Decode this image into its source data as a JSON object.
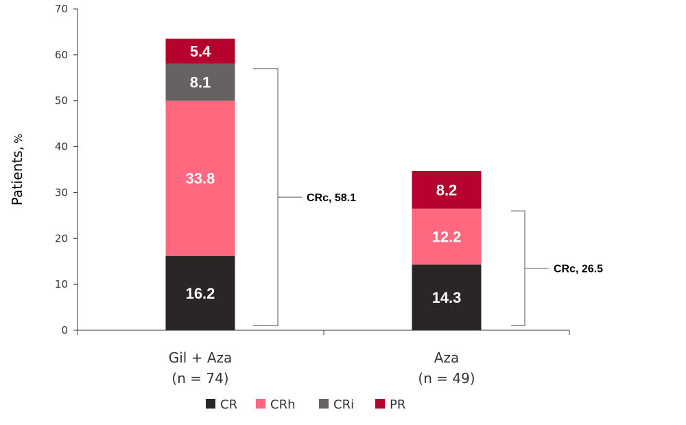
{
  "chart_data": {
    "type": "bar",
    "stacked": true,
    "title": "",
    "xlabel": "",
    "ylabel": "Patients,",
    "ylabel_unit": "%",
    "ylim": [
      0,
      70
    ],
    "yticks": [
      0,
      10,
      20,
      30,
      40,
      50,
      60,
      70
    ],
    "grid": false,
    "legend_position": "bottom",
    "categories": [
      {
        "line1": "Gil + Aza",
        "line2": "(n = 74)"
      },
      {
        "line1": "Aza",
        "line2": "(n = 49)"
      }
    ],
    "series": [
      {
        "name": "CR",
        "color": "#2b2626",
        "values": [
          16.2,
          14.3
        ],
        "labels": [
          "16.2",
          "14.3"
        ]
      },
      {
        "name": "CRh",
        "color": "#ff687e",
        "values": [
          33.8,
          12.2
        ],
        "labels": [
          "33.8",
          "12.2"
        ]
      },
      {
        "name": "CRi",
        "color": "#666262",
        "values": [
          8.1,
          0
        ],
        "labels": [
          "8.1",
          ""
        ]
      },
      {
        "name": "PR",
        "color": "#b5032d",
        "values": [
          5.4,
          8.2
        ],
        "labels": [
          "5.4",
          "8.2"
        ]
      }
    ],
    "annotations": [
      {
        "category_index": 0,
        "text": "CRc, 58.1",
        "from": 1,
        "to": 57
      },
      {
        "category_index": 1,
        "text": "CRc, 26.5",
        "from": 1,
        "to": 26
      }
    ]
  }
}
